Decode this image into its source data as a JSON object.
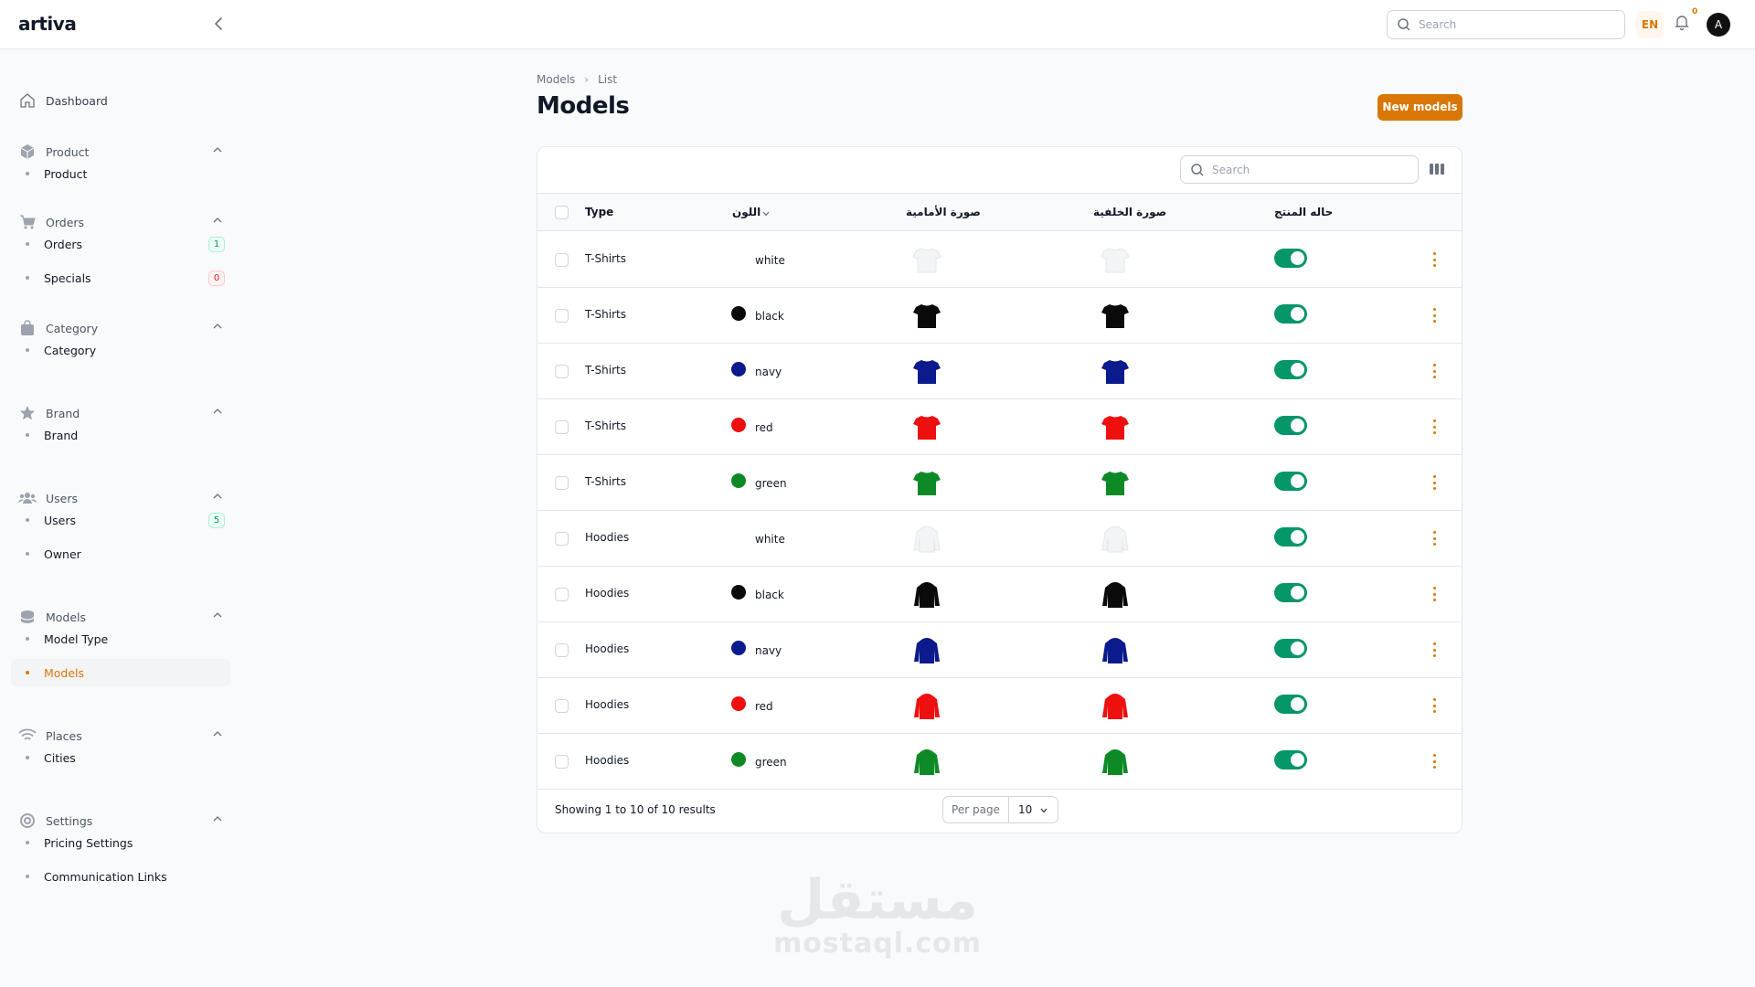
{
  "app": {
    "logo": "artiva"
  },
  "topbar": {
    "search_placeholder": "Search",
    "lang": "EN",
    "notifications": "0",
    "avatar_initial": "A"
  },
  "sidebar": {
    "dashboard": "Dashboard",
    "groups": [
      {
        "title": "Product",
        "items": [
          {
            "label": "Product"
          }
        ]
      },
      {
        "title": "Orders",
        "items": [
          {
            "label": "Orders",
            "badge": "1"
          },
          {
            "label": "Specials",
            "badge": "0"
          }
        ]
      },
      {
        "title": "Category",
        "items": [
          {
            "label": "Category"
          }
        ]
      },
      {
        "title": "Brand",
        "items": [
          {
            "label": "Brand"
          }
        ]
      },
      {
        "title": "Users",
        "items": [
          {
            "label": "Users",
            "badge": "5"
          },
          {
            "label": "Owner"
          }
        ]
      },
      {
        "title": "Models",
        "items": [
          {
            "label": "Model Type"
          },
          {
            "label": "Models"
          }
        ]
      },
      {
        "title": "Places",
        "items": [
          {
            "label": "Cities"
          }
        ]
      },
      {
        "title": "Settings",
        "items": [
          {
            "label": "Pricing Settings"
          },
          {
            "label": "Communication Links"
          }
        ]
      }
    ]
  },
  "page": {
    "breadcrumb": [
      "Models",
      "List"
    ],
    "title": "Models",
    "new_button": "New models"
  },
  "table": {
    "search_placeholder": "Search",
    "headers": {
      "type": "Type",
      "color": "اللون",
      "front": "صورة الأمامية",
      "back": "صورة الخلفية",
      "status": "حاله المنتج"
    },
    "rows": [
      {
        "type": "T-Shirts",
        "color": "white",
        "swatch": "#ffffff",
        "garment": "tshirt",
        "status": true
      },
      {
        "type": "T-Shirts",
        "color": "black",
        "swatch": "#0a0a0a",
        "garment": "tshirt",
        "status": true
      },
      {
        "type": "T-Shirts",
        "color": "navy",
        "swatch": "#0b1a8c",
        "garment": "tshirt",
        "status": true
      },
      {
        "type": "T-Shirts",
        "color": "red",
        "swatch": "#ee0f0f",
        "garment": "tshirt",
        "status": true
      },
      {
        "type": "T-Shirts",
        "color": "green",
        "swatch": "#0d8a25",
        "garment": "tshirt",
        "status": true
      },
      {
        "type": "Hoodies",
        "color": "white",
        "swatch": "#ffffff",
        "garment": "hoodie",
        "status": true
      },
      {
        "type": "Hoodies",
        "color": "black",
        "swatch": "#0a0a0a",
        "garment": "hoodie",
        "status": true
      },
      {
        "type": "Hoodies",
        "color": "navy",
        "swatch": "#0b1a8c",
        "garment": "hoodie",
        "status": true
      },
      {
        "type": "Hoodies",
        "color": "red",
        "swatch": "#ee0f0f",
        "garment": "hoodie",
        "status": true
      },
      {
        "type": "Hoodies",
        "color": "green",
        "swatch": "#0d8a25",
        "garment": "hoodie",
        "status": true
      }
    ],
    "footer": {
      "showing": "Showing 1 to 10 of 10 results",
      "per_page_label": "Per page",
      "per_page_value": "10"
    }
  },
  "watermark": {
    "arabic": "مستقل",
    "latin": "mostaql.com"
  },
  "colors": {
    "accent": "#d97706",
    "toggle_on": "#059669"
  }
}
